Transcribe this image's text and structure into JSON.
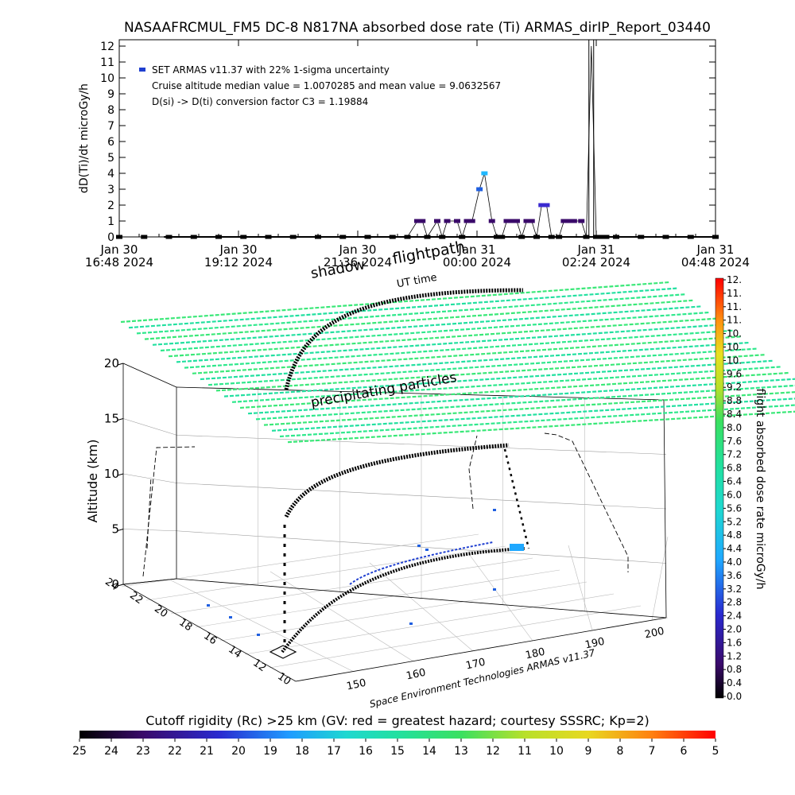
{
  "title": "NASAAFRCMUL_FM5 DC-8   N817NA absorbed dose rate (Ti) ARMAS_dirIP_Report_03440",
  "colors": {
    "axis": "#000000",
    "trace": "#000000",
    "precip": "#2ee88c",
    "shadow": "#000000"
  },
  "top_chart": {
    "ylabel": "dD(Ti)/dt microGy/h",
    "xlabel": "UT time",
    "legend": [
      "SET ARMAS v11.37 with 22% 1-sigma uncertainty",
      "Cruise altitude median value = 1.0070285 and mean value = 9.0632567",
      "D(si) -> D(ti) conversion factor C3 = 1.19884"
    ],
    "legend_marker_color": "#1f3fd0",
    "ytick_labels": [
      "0",
      "1",
      "2",
      "3",
      "4",
      "5",
      "6",
      "7",
      "8",
      "9",
      "10",
      "11",
      "12"
    ],
    "xtick_labels": [
      {
        "day": "Jan 30",
        "time": "16:48 2024"
      },
      {
        "day": "Jan 30",
        "time": "19:12 2024"
      },
      {
        "day": "Jan 30",
        "time": "21:36 2024"
      },
      {
        "day": "Jan 31",
        "time": "00:00 2024"
      },
      {
        "day": "Jan 31",
        "time": "02:24 2024"
      },
      {
        "day": "Jan 31",
        "time": "04:48 2024"
      }
    ]
  },
  "chart_data": [
    {
      "type": "scatter",
      "title": "NASAAFRCMUL_FM5 DC-8   N817NA absorbed dose rate (Ti) ARMAS_dirIP_Report_03440",
      "xlabel": "UT time",
      "ylabel": "dD(Ti)/dt microGy/h",
      "x_unit": "hours after Jan 30 16:48 2024",
      "xlim": [
        0,
        12
      ],
      "ylim": [
        0,
        12
      ],
      "grid": false,
      "legend_position": "top-left",
      "series": [
        {
          "name": "SET ARMAS v11.37 with 22% 1-sigma uncertainty",
          "x": [
            0.0,
            0.5,
            1.0,
            1.5,
            2.0,
            2.5,
            3.0,
            3.5,
            4.0,
            4.5,
            5.0,
            5.5,
            5.8,
            6.0,
            6.1,
            6.2,
            6.4,
            6.5,
            6.6,
            6.8,
            6.9,
            7.0,
            7.1,
            7.25,
            7.35,
            7.5,
            7.6,
            7.7,
            7.8,
            7.9,
            8.0,
            8.1,
            8.2,
            8.3,
            8.4,
            8.5,
            8.6,
            8.7,
            8.85,
            8.95,
            9.05,
            9.15,
            9.3,
            9.4,
            9.5,
            9.6,
            9.7,
            9.8,
            10.0,
            10.5,
            11.0,
            11.5,
            12.0
          ],
          "y": [
            0,
            0,
            0,
            0,
            0,
            0,
            0,
            0,
            0,
            0,
            0,
            0,
            0,
            1,
            1,
            0,
            1,
            0,
            1,
            1,
            0,
            1,
            1,
            3,
            4,
            1,
            0,
            0,
            1,
            1,
            1,
            0,
            1,
            1,
            0,
            2,
            2,
            0,
            0,
            1,
            1,
            1,
            1,
            0,
            12,
            0,
            0,
            0,
            0,
            0,
            0,
            0,
            0
          ]
        }
      ]
    },
    {
      "type": "scatter",
      "subtype": "3d-flight-track",
      "zlabel": "Altitude (km)",
      "zlim": [
        0,
        20
      ],
      "longitude_ticks": [
        "150",
        "160",
        "170",
        "180",
        "190",
        "200"
      ],
      "latitude_ticks": [
        "10",
        "12",
        "14",
        "16",
        "18",
        "20",
        "22",
        "24"
      ],
      "colorbar_label": "flight absorbed dose rate microGy/h",
      "colorbar_ticks": [
        "0.0",
        "0.4",
        "0.8",
        "1.2",
        "1.6",
        "2.0",
        "2.4",
        "2.8",
        "3.2",
        "3.6",
        "4.0",
        "4.4",
        "4.8",
        "5.2",
        "5.6",
        "6.0",
        "6.4",
        "6.8",
        "7.2",
        "7.6",
        "8.0",
        "8.4",
        "8.8",
        "9.2",
        "9.6",
        "10.",
        "10.",
        "10.",
        "11.",
        "11.",
        "11.",
        "12."
      ],
      "annotations": [
        "shadow",
        "flightpath",
        "precipitating particles"
      ],
      "credit": "Space Environment Technologies ARMAS v11.37"
    },
    {
      "type": "heatmap",
      "subtype": "color-scale",
      "title": "Cutoff rigidity (Rc) >25 km (GV: red = greatest hazard; courtesy SSSRC; Kp=2)",
      "tick_labels": [
        "25",
        "24",
        "23",
        "22",
        "21",
        "20",
        "19",
        "18",
        "17",
        "16",
        "15",
        "14",
        "13",
        "12",
        "11",
        "10",
        "9",
        "8",
        "7",
        "6",
        "5"
      ]
    }
  ],
  "scene": {
    "zlabel": "Altitude (km)",
    "z_ticks": [
      "0",
      "5",
      "10",
      "15",
      "20"
    ],
    "lon_ticks": [
      "150",
      "160",
      "170",
      "180",
      "190",
      "200"
    ],
    "lat_ticks": [
      "10",
      "12",
      "14",
      "16",
      "18",
      "20",
      "22",
      "24"
    ],
    "label_shadow": "shadow",
    "label_flightpath": "flightpath",
    "label_precip": "precipitating particles",
    "credit": "Space Environment Technologies ARMAS v11.37"
  },
  "right_colorbar": {
    "label": "flight absorbed dose rate microGy/h",
    "ticks": [
      "0.0",
      "0.4",
      "0.8",
      "1.2",
      "1.6",
      "2.0",
      "2.4",
      "2.8",
      "3.2",
      "3.6",
      "4.0",
      "4.4",
      "4.8",
      "5.2",
      "5.6",
      "6.0",
      "6.4",
      "6.8",
      "7.2",
      "7.6",
      "8.0",
      "8.4",
      "8.8",
      "9.2",
      "9.6",
      "10.",
      "10.",
      "10.",
      "11.",
      "11.",
      "11.",
      "12."
    ]
  },
  "bottom_colorbar": {
    "title": "Cutoff rigidity (Rc) >25 km (GV: red = greatest hazard; courtesy SSSRC; Kp=2)",
    "ticks": [
      "25",
      "24",
      "23",
      "22",
      "21",
      "20",
      "19",
      "18",
      "17",
      "16",
      "15",
      "14",
      "13",
      "12",
      "11",
      "10",
      "9",
      "8",
      "7",
      "6",
      "5"
    ]
  }
}
